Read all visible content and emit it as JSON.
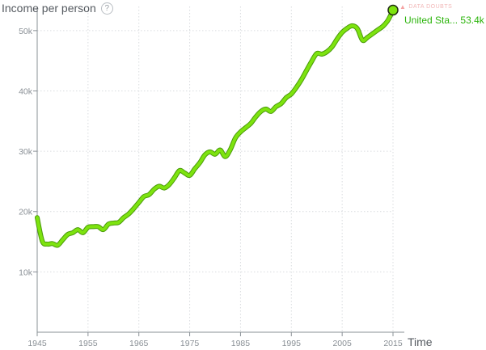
{
  "chart_data": {
    "type": "line",
    "ylabel": "Income per person",
    "xlabel": "Time",
    "xlim": [
      1945,
      2015
    ],
    "ylim": [
      0,
      54000
    ],
    "x_ticks": [
      1945,
      1955,
      1965,
      1975,
      1985,
      1995,
      2005,
      2015
    ],
    "y_ticks": [
      10000,
      20000,
      30000,
      40000,
      50000
    ],
    "y_tick_labels": [
      "10k",
      "20k",
      "30k",
      "40k",
      "50k"
    ],
    "x_tick_labels": [
      "1945",
      "1955",
      "1965",
      "1975",
      "1985",
      "1995",
      "2005",
      "2015"
    ],
    "grid": true,
    "data_doubts_label": "DATA DOUBTS",
    "series": [
      {
        "name": "United States",
        "display_label": "United Sta...",
        "end_value_label": "53.4k",
        "color": "#7de30f",
        "outline_color": "#4a9a0a",
        "x": [
          1945,
          1946,
          1947,
          1948,
          1949,
          1950,
          1951,
          1952,
          1953,
          1954,
          1955,
          1956,
          1957,
          1958,
          1959,
          1960,
          1961,
          1962,
          1963,
          1964,
          1965,
          1966,
          1967,
          1968,
          1969,
          1970,
          1971,
          1972,
          1973,
          1974,
          1975,
          1976,
          1977,
          1978,
          1979,
          1980,
          1981,
          1982,
          1983,
          1984,
          1985,
          1986,
          1987,
          1988,
          1989,
          1990,
          1991,
          1992,
          1993,
          1994,
          1995,
          1996,
          1997,
          1998,
          1999,
          2000,
          2001,
          2002,
          2003,
          2004,
          2005,
          2006,
          2007,
          2008,
          2009,
          2010,
          2011,
          2012,
          2013,
          2014,
          2015
        ],
        "values": [
          19000,
          15100,
          14600,
          14700,
          14400,
          15300,
          16200,
          16500,
          17000,
          16500,
          17400,
          17500,
          17500,
          17000,
          17900,
          18100,
          18200,
          19000,
          19600,
          20500,
          21500,
          22500,
          22800,
          23700,
          24200,
          23900,
          24500,
          25600,
          26800,
          26400,
          26000,
          27100,
          28100,
          29400,
          29900,
          29500,
          30200,
          29100,
          30300,
          32200,
          33200,
          33900,
          34600,
          35700,
          36600,
          37000,
          36600,
          37400,
          37900,
          38900,
          39500,
          40600,
          41900,
          43400,
          44900,
          46200,
          46100,
          46500,
          47300,
          48600,
          49700,
          50400,
          50800,
          50300,
          48400,
          48900,
          49500,
          50100,
          50700,
          51700,
          53400
        ]
      }
    ]
  }
}
